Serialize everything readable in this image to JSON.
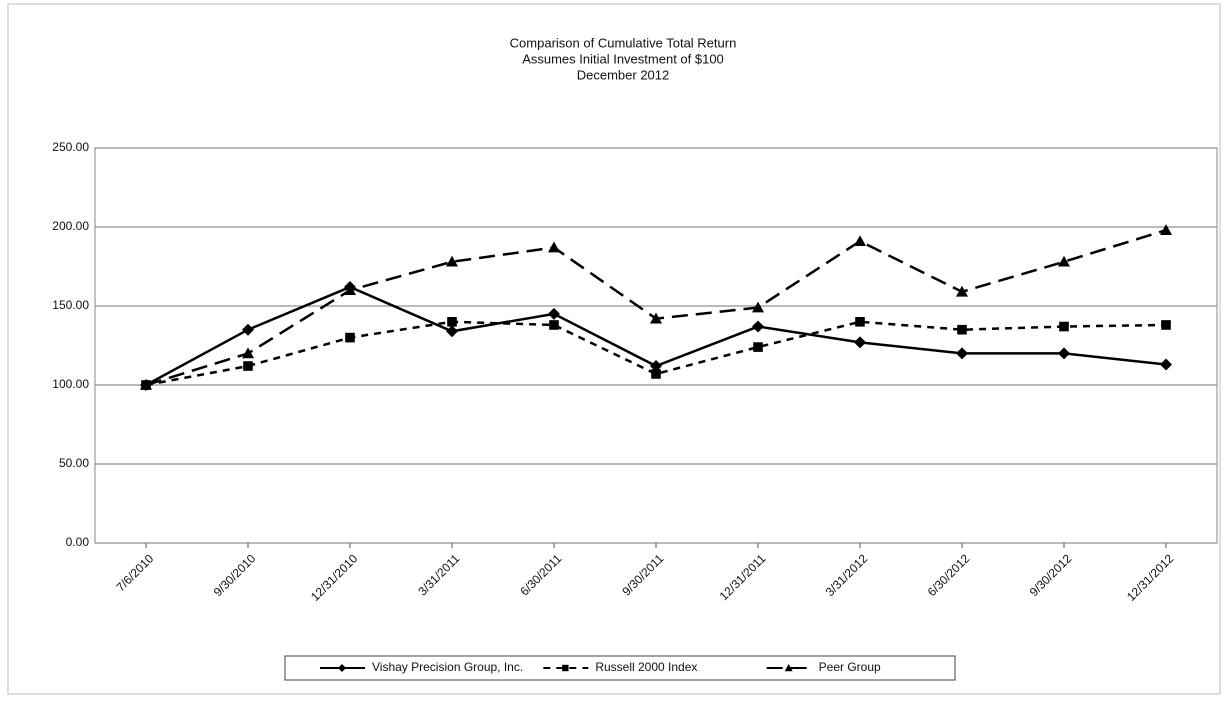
{
  "chart_data": {
    "type": "line",
    "title": "Comparison of Cumulative Total Return",
    "subtitle": [
      "Assumes Initial Investment of $100",
      "December 2012"
    ],
    "categories": [
      "7/6/2010",
      "9/30/2010",
      "12/31/2010",
      "3/31/2011",
      "6/30/2011",
      "9/30/2011",
      "12/31/2011",
      "3/31/2012",
      "6/30/2012",
      "9/30/2012",
      "12/31/2012"
    ],
    "series": [
      {
        "name": "Vishay Precision Group, Inc.",
        "color": "#000000",
        "marker": "diamond",
        "dash": "solid",
        "values": [
          100,
          135,
          162,
          134,
          145,
          112,
          137,
          127,
          120,
          120,
          113
        ]
      },
      {
        "name": "Russell 2000 Index",
        "color": "#000000",
        "marker": "square",
        "dash": "short",
        "values": [
          100,
          112,
          130,
          140,
          138,
          107,
          124,
          140,
          135,
          137,
          138
        ]
      },
      {
        "name": "Peer Group",
        "color": "#000000",
        "marker": "triangle",
        "dash": "long",
        "values": [
          100,
          120,
          160,
          178,
          187,
          142,
          149,
          191,
          159,
          178,
          198
        ]
      }
    ],
    "ylim": [
      0,
      250
    ],
    "yticks": [
      {
        "value": 0,
        "label": "0.00"
      },
      {
        "value": 50,
        "label": "50.00"
      },
      {
        "value": 100,
        "label": "100.00"
      },
      {
        "value": 150,
        "label": "150.00"
      },
      {
        "value": 200,
        "label": "200.00"
      },
      {
        "value": 250,
        "label": "250.00"
      }
    ],
    "grid": true,
    "legend": "bottom"
  }
}
